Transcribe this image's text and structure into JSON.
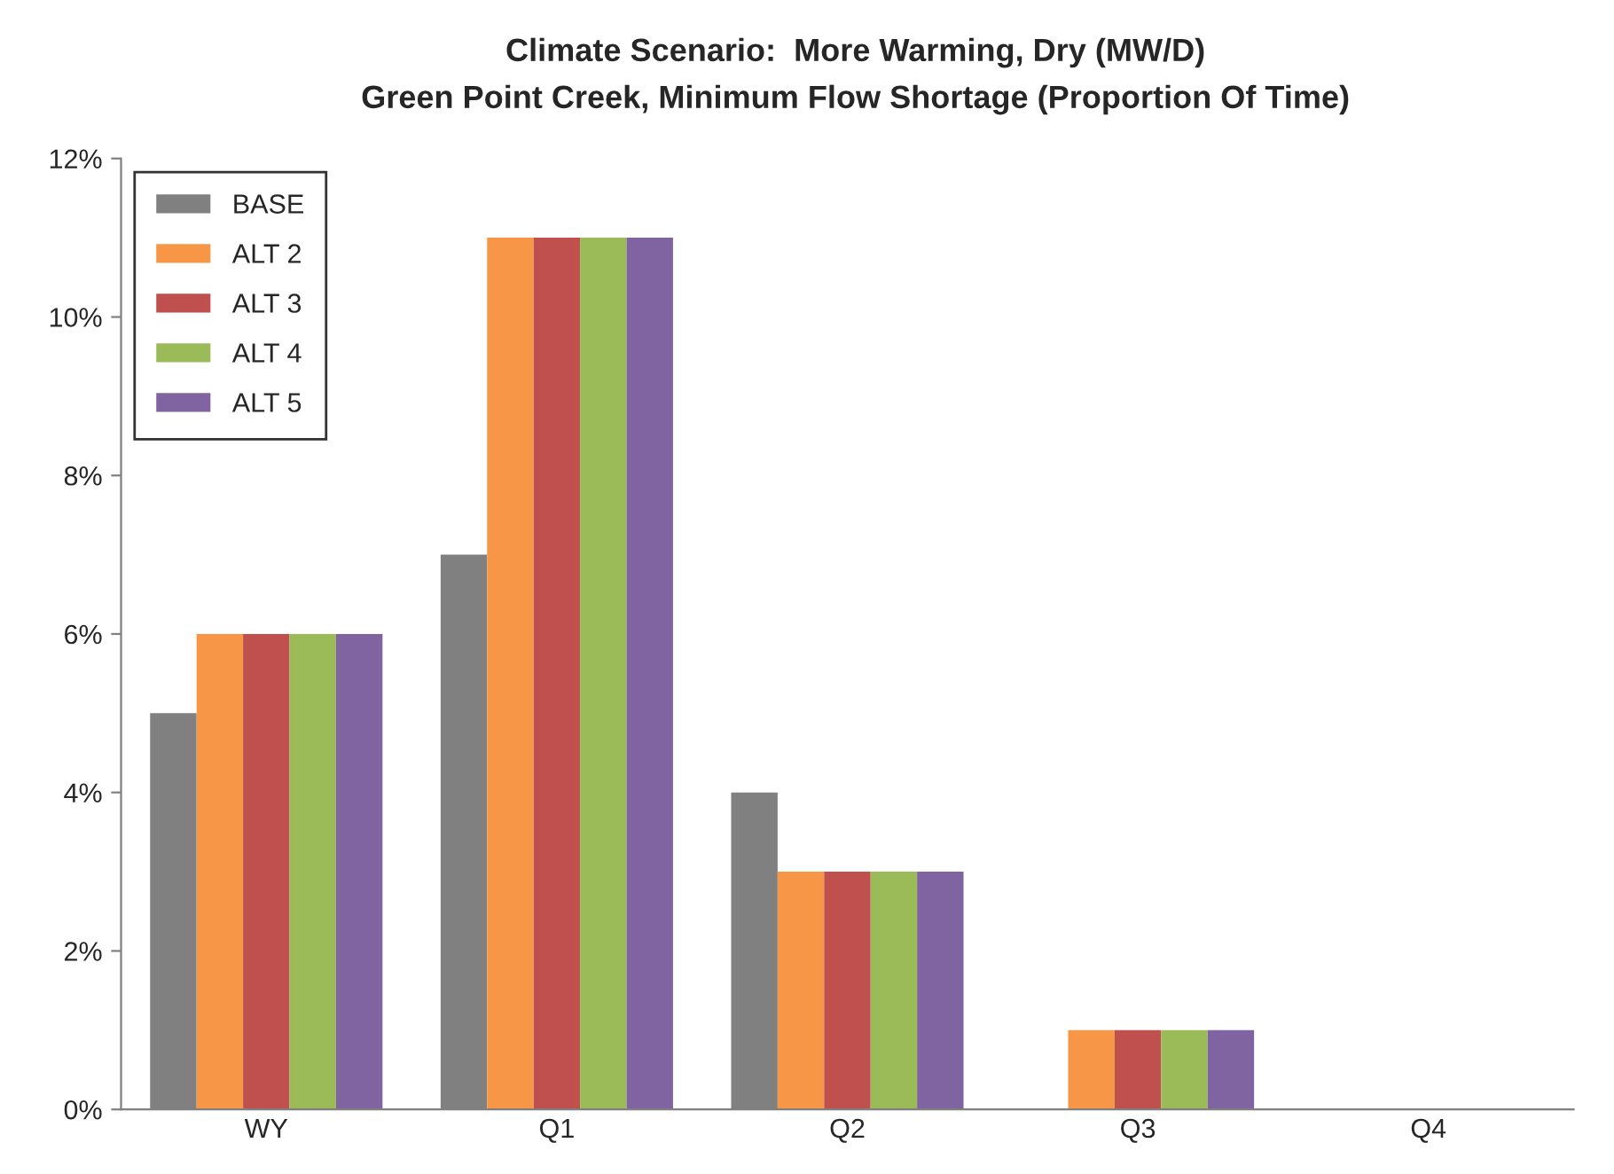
{
  "chart_data": {
    "type": "bar",
    "title": "Climate Scenario:  More Warming, Dry (MW/D)",
    "subtitle": "Green Point Creek, Minimum Flow Shortage (Proportion Of Time)",
    "categories": [
      "WY",
      "Q1",
      "Q2",
      "Q3",
      "Q4"
    ],
    "series": [
      {
        "name": "BASE",
        "color": "#808080",
        "values": [
          5,
          7,
          4,
          0,
          0
        ]
      },
      {
        "name": "ALT 2",
        "color": "#f79646",
        "values": [
          6,
          11,
          3,
          1,
          0
        ]
      },
      {
        "name": "ALT 3",
        "color": "#c0504d",
        "values": [
          6,
          11,
          3,
          1,
          0
        ]
      },
      {
        "name": "ALT 4",
        "color": "#9bbb59",
        "values": [
          6,
          11,
          3,
          1,
          0
        ]
      },
      {
        "name": "ALT 5",
        "color": "#8064a2",
        "values": [
          6,
          11,
          3,
          1,
          0
        ]
      }
    ],
    "ylim": [
      0,
      12
    ],
    "yticks": [
      {
        "value": 0,
        "label": "0%"
      },
      {
        "value": 2,
        "label": "2%"
      },
      {
        "value": 4,
        "label": "4%"
      },
      {
        "value": 6,
        "label": "6%"
      },
      {
        "value": 8,
        "label": "8%"
      },
      {
        "value": 10,
        "label": "10%"
      },
      {
        "value": 12,
        "label": "12%"
      }
    ],
    "grid": false,
    "legend": "top left"
  }
}
